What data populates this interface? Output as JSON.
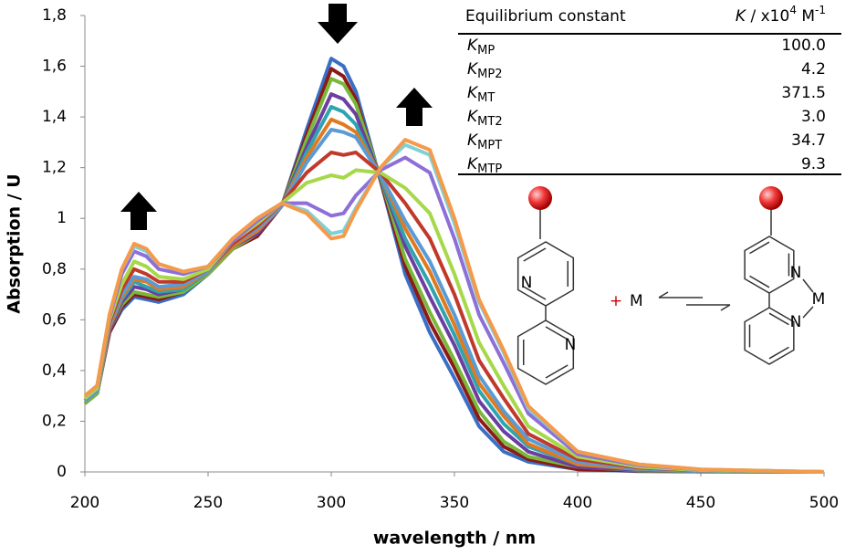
{
  "chart_data": {
    "type": "line",
    "x_label": "wavelength / nm",
    "y_label": "Absorption / U",
    "x": [
      200,
      205,
      210,
      215,
      220,
      225,
      230,
      240,
      250,
      260,
      270,
      280,
      290,
      300,
      305,
      310,
      320,
      330,
      340,
      350,
      360,
      370,
      380,
      400,
      425,
      450,
      500
    ],
    "xlim": [
      200,
      500
    ],
    "xticks": [
      200,
      250,
      300,
      350,
      400,
      450,
      500
    ],
    "ylim": [
      0,
      1.8
    ],
    "yticks": [
      0,
      {
        "value": 0.2,
        "label": "0,2"
      },
      {
        "value": 0.4,
        "label": "0,4"
      },
      {
        "value": 0.6,
        "label": "0,6"
      },
      {
        "value": 0.8,
        "label": "0,8"
      },
      1,
      {
        "value": 1.2,
        "label": "1,2"
      },
      {
        "value": 1.4,
        "label": "1,4"
      },
      {
        "value": 1.6,
        "label": "1,6"
      },
      {
        "value": 1.8,
        "label": "1,8"
      }
    ],
    "series": [
      {
        "color": "#3a6fc4",
        "values": [
          0.27,
          0.31,
          0.55,
          0.64,
          0.69,
          0.68,
          0.67,
          0.7,
          0.78,
          0.88,
          0.93,
          1.05,
          1.35,
          1.63,
          1.6,
          1.5,
          1.15,
          0.78,
          0.55,
          0.37,
          0.18,
          0.08,
          0.04,
          0.01,
          0.003,
          0.001,
          0
        ]
      },
      {
        "color": "#8b1a1a",
        "values": [
          0.27,
          0.31,
          0.55,
          0.65,
          0.7,
          0.69,
          0.68,
          0.71,
          0.78,
          0.88,
          0.93,
          1.05,
          1.33,
          1.59,
          1.56,
          1.47,
          1.15,
          0.81,
          0.59,
          0.41,
          0.21,
          0.1,
          0.05,
          0.01,
          0.005,
          0.002,
          0
        ]
      },
      {
        "color": "#7ab83a",
        "values": [
          0.27,
          0.31,
          0.56,
          0.66,
          0.71,
          0.7,
          0.69,
          0.71,
          0.78,
          0.88,
          0.94,
          1.05,
          1.31,
          1.55,
          1.53,
          1.45,
          1.16,
          0.84,
          0.63,
          0.44,
          0.24,
          0.12,
          0.06,
          0.02,
          0.006,
          0.002,
          0
        ]
      },
      {
        "color": "#6a3fa0",
        "values": [
          0.28,
          0.32,
          0.56,
          0.67,
          0.73,
          0.72,
          0.7,
          0.72,
          0.79,
          0.89,
          0.94,
          1.05,
          1.28,
          1.49,
          1.47,
          1.41,
          1.16,
          0.89,
          0.69,
          0.5,
          0.28,
          0.16,
          0.08,
          0.02,
          0.008,
          0.003,
          0
        ]
      },
      {
        "color": "#2fa4b0",
        "values": [
          0.28,
          0.32,
          0.57,
          0.68,
          0.75,
          0.73,
          0.71,
          0.72,
          0.79,
          0.89,
          0.95,
          1.05,
          1.26,
          1.44,
          1.42,
          1.37,
          1.16,
          0.92,
          0.74,
          0.54,
          0.32,
          0.19,
          0.1,
          0.03,
          0.01,
          0.003,
          0
        ]
      },
      {
        "color": "#e07a1f",
        "values": [
          0.28,
          0.32,
          0.57,
          0.69,
          0.76,
          0.75,
          0.72,
          0.73,
          0.79,
          0.89,
          0.95,
          1.05,
          1.24,
          1.39,
          1.37,
          1.34,
          1.17,
          0.96,
          0.79,
          0.58,
          0.35,
          0.22,
          0.11,
          0.03,
          0.012,
          0.004,
          0
        ]
      },
      {
        "color": "#5b9bd5",
        "values": [
          0.28,
          0.32,
          0.58,
          0.7,
          0.77,
          0.76,
          0.73,
          0.74,
          0.79,
          0.9,
          0.96,
          1.05,
          1.22,
          1.35,
          1.34,
          1.32,
          1.17,
          0.99,
          0.83,
          0.62,
          0.38,
          0.24,
          0.13,
          0.04,
          0.013,
          0.004,
          0
        ]
      },
      {
        "color": "#c0392b",
        "values": [
          0.29,
          0.33,
          0.59,
          0.72,
          0.8,
          0.78,
          0.75,
          0.75,
          0.8,
          0.9,
          0.97,
          1.06,
          1.18,
          1.26,
          1.25,
          1.26,
          1.18,
          1.06,
          0.92,
          0.7,
          0.44,
          0.29,
          0.15,
          0.05,
          0.017,
          0.006,
          0
        ]
      },
      {
        "color": "#a6d84a",
        "values": [
          0.29,
          0.33,
          0.6,
          0.74,
          0.83,
          0.81,
          0.77,
          0.76,
          0.8,
          0.91,
          0.98,
          1.06,
          1.14,
          1.17,
          1.16,
          1.19,
          1.18,
          1.12,
          1.02,
          0.78,
          0.51,
          0.34,
          0.18,
          0.06,
          0.02,
          0.007,
          0
        ]
      },
      {
        "color": "#8e6fd8",
        "values": [
          0.3,
          0.34,
          0.61,
          0.78,
          0.87,
          0.85,
          0.8,
          0.78,
          0.81,
          0.91,
          0.99,
          1.06,
          1.06,
          1.01,
          1.02,
          1.09,
          1.19,
          1.24,
          1.18,
          0.92,
          0.62,
          0.43,
          0.23,
          0.07,
          0.026,
          0.009,
          0
        ]
      },
      {
        "color": "#7fd0d8",
        "values": [
          0.3,
          0.34,
          0.62,
          0.8,
          0.89,
          0.87,
          0.82,
          0.79,
          0.81,
          0.92,
          1.0,
          1.06,
          1.03,
          0.94,
          0.95,
          1.04,
          1.2,
          1.29,
          1.25,
          0.98,
          0.67,
          0.47,
          0.25,
          0.08,
          0.029,
          0.01,
          0
        ]
      },
      {
        "color": "#f59a4a",
        "values": [
          0.3,
          0.34,
          0.62,
          0.8,
          0.9,
          0.88,
          0.82,
          0.79,
          0.81,
          0.92,
          1.0,
          1.06,
          1.02,
          0.92,
          0.93,
          1.03,
          1.2,
          1.31,
          1.27,
          1.0,
          0.68,
          0.48,
          0.26,
          0.08,
          0.03,
          0.01,
          0
        ]
      }
    ]
  },
  "table": {
    "header": [
      "Equilibrium constant",
      "K",
      " / x10",
      "4",
      " M",
      "-1"
    ],
    "rows": [
      {
        "symbol": "K",
        "sub": "MP",
        "value": "100.0"
      },
      {
        "symbol": "K",
        "sub": "MP2",
        "value": "4.2"
      },
      {
        "symbol": "K",
        "sub": "MT",
        "value": "371.5"
      },
      {
        "symbol": "K",
        "sub": "MT2",
        "value": "3.0"
      },
      {
        "symbol": "K",
        "sub": "MPT",
        "value": "34.7"
      },
      {
        "symbol": "K",
        "sub": "MTP",
        "value": "9.3"
      }
    ]
  },
  "scheme": {
    "plus": "+",
    "metal": "M",
    "nitrogen": "N"
  }
}
